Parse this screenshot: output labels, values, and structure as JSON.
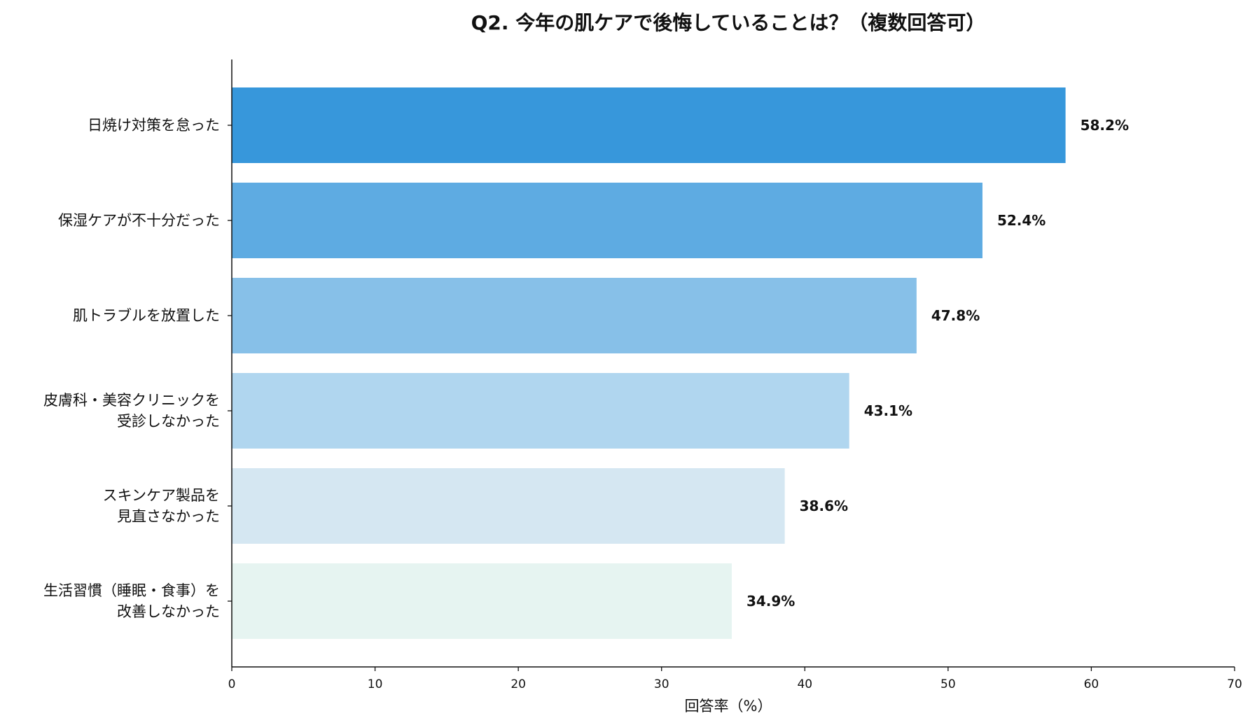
{
  "chart_data": {
    "type": "bar",
    "orientation": "horizontal",
    "title": "Q2. 今年の肌ケアで後悔していることは？（複数回答可）",
    "xlabel": "回答率（%）",
    "ylabel": "",
    "xlim": [
      0,
      70
    ],
    "xticks": [
      0,
      10,
      20,
      30,
      40,
      50,
      60,
      70
    ],
    "grid": false,
    "categories": [
      [
        "日焼け対策を怠った"
      ],
      [
        "保湿ケアが不十分だった"
      ],
      [
        "肌トラブルを放置した"
      ],
      [
        "皮膚科・美容クリニックを",
        "受診しなかった"
      ],
      [
        "スキンケア製品を",
        "見直さなかった"
      ],
      [
        "生活習慣（睡眠・食事）を",
        "改善しなかった"
      ]
    ],
    "values": [
      58.2,
      52.4,
      47.8,
      43.1,
      38.6,
      34.9
    ],
    "value_labels": [
      "58.2%",
      "52.4%",
      "47.8%",
      "43.1%",
      "38.6%",
      "34.9%"
    ],
    "colors": [
      "#3797db",
      "#5eabe2",
      "#87c0e8",
      "#b0d6ef",
      "#d5e7f2",
      "#e6f4f1"
    ]
  }
}
